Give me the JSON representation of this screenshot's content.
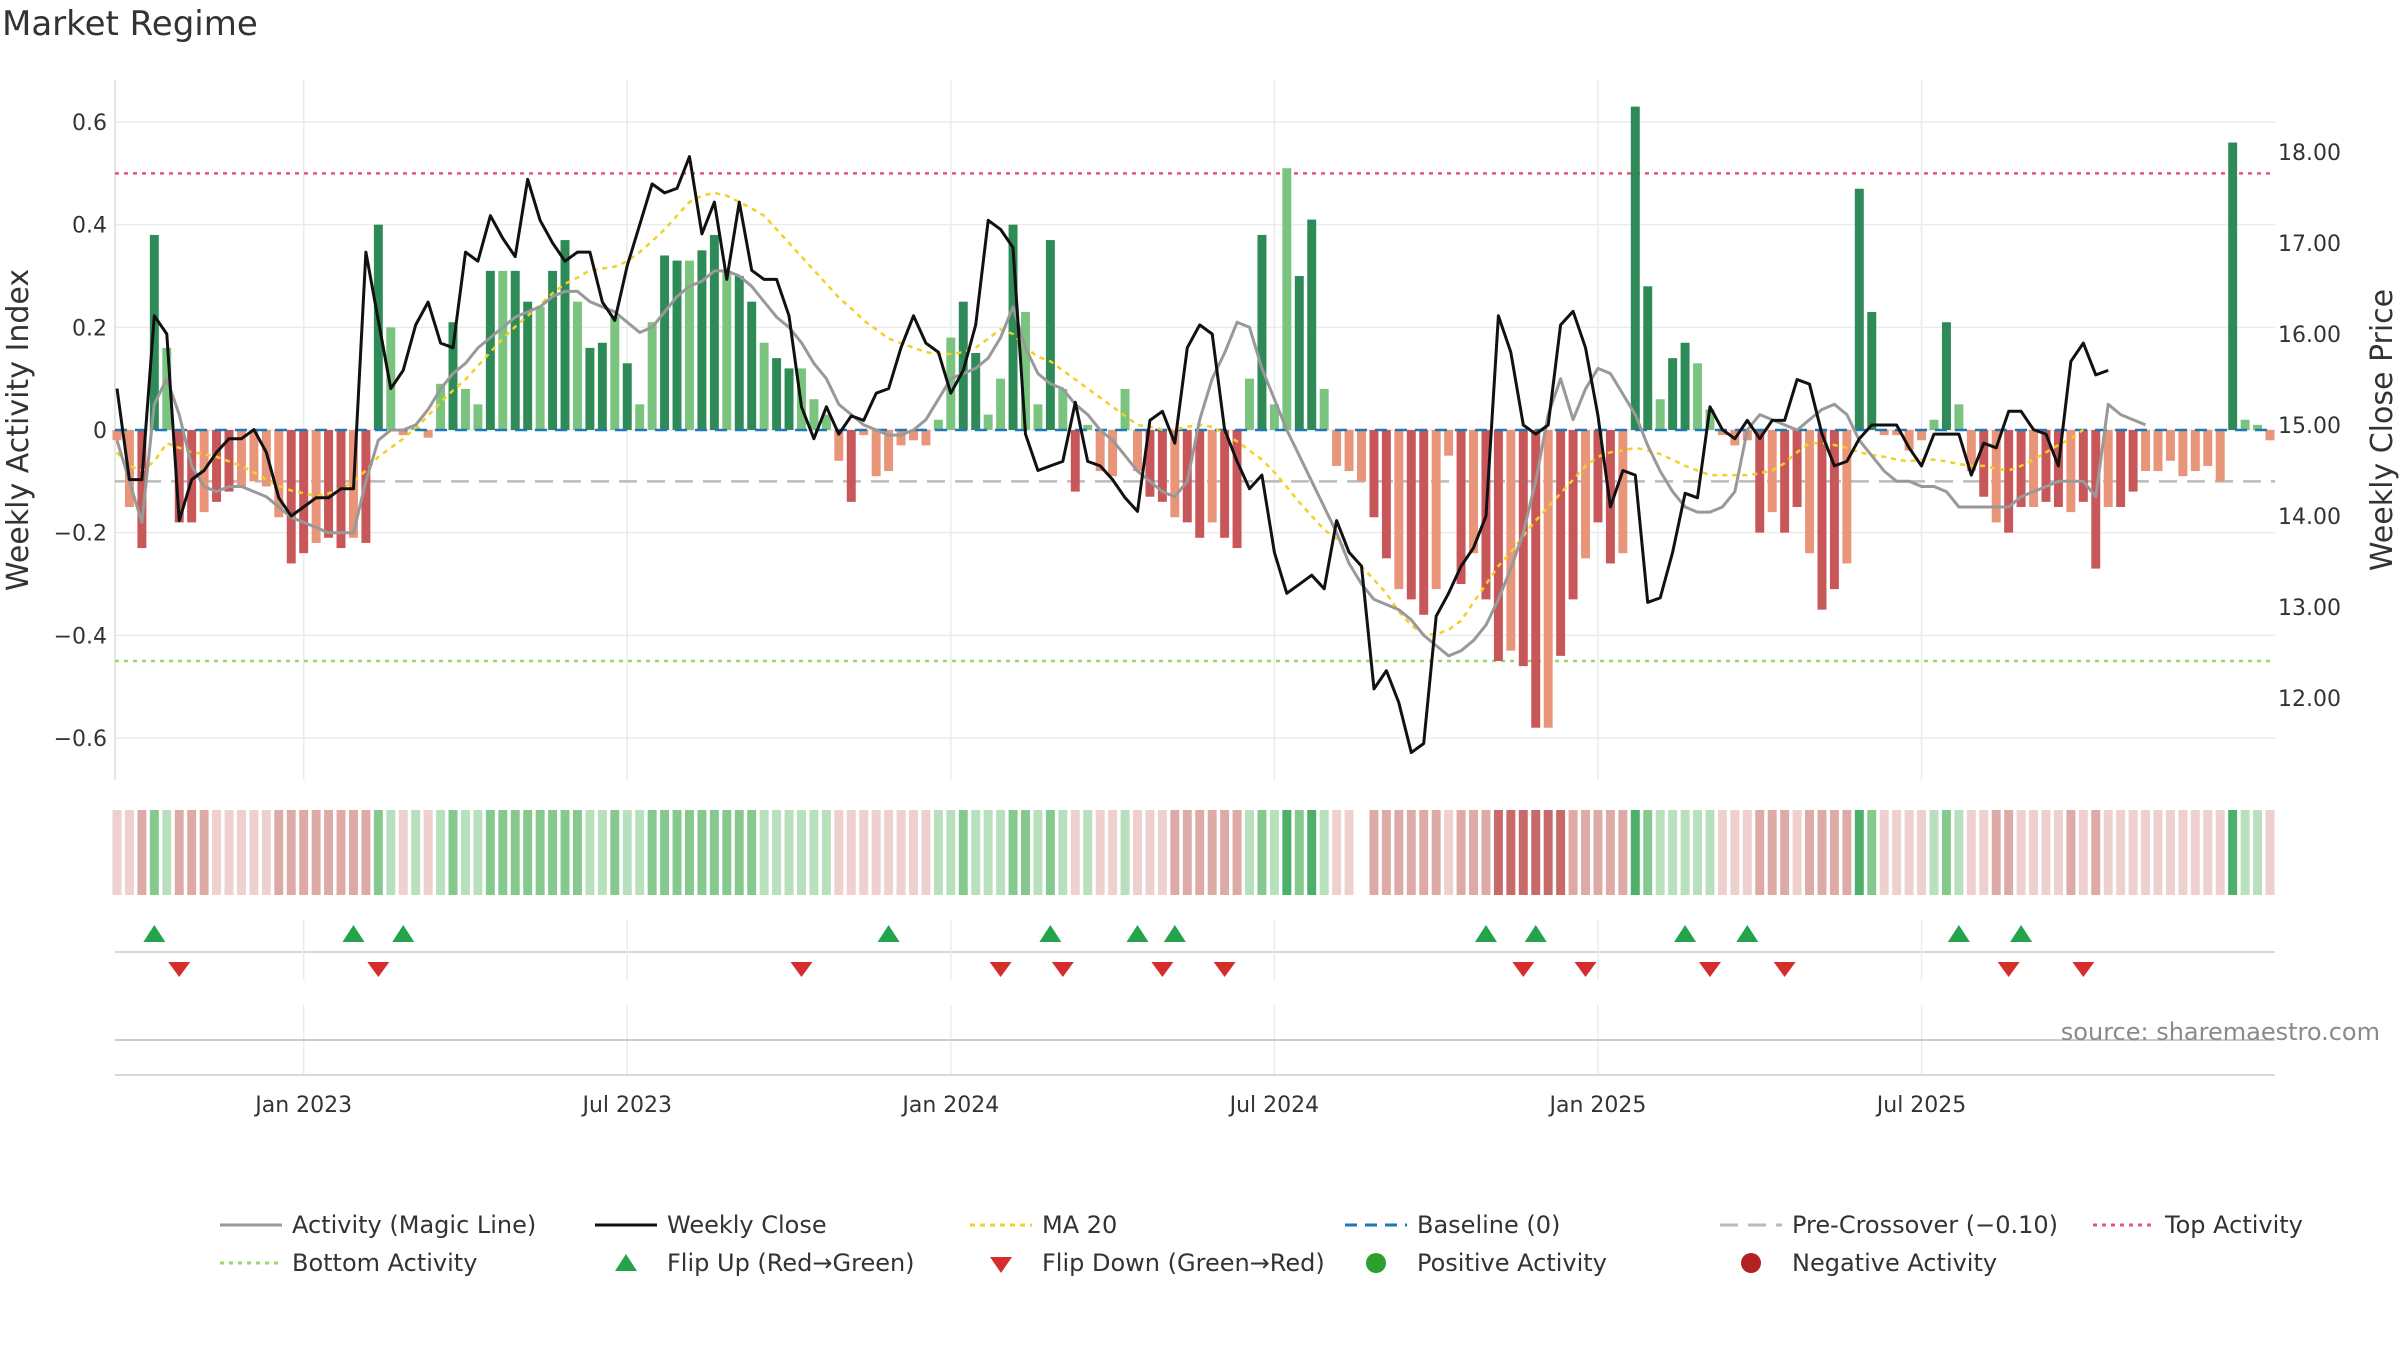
{
  "chart_data": {
    "type": "bar",
    "title": "Market Regime",
    "ylabel_left": "Weekly Activity Index",
    "ylabel_right": "Weekly Close Price",
    "source": "source: sharemaestro.com",
    "ylim_left": [
      -0.69,
      0.69
    ],
    "ylim_right": [
      11.2,
      18.82
    ],
    "left_ticks": [
      {
        "v": 0.6,
        "label": "0.6"
      },
      {
        "v": 0.4,
        "label": "0.4"
      },
      {
        "v": 0.2,
        "label": "0.2"
      },
      {
        "v": 0,
        "label": "0"
      },
      {
        "v": -0.2,
        "label": "−0.2"
      },
      {
        "v": -0.4,
        "label": "−0.4"
      },
      {
        "v": -0.6,
        "label": "−0.6"
      }
    ],
    "right_ticks": [
      {
        "v": 18,
        "label": "18.00"
      },
      {
        "v": 17,
        "label": "17.00"
      },
      {
        "v": 16,
        "label": "16.00"
      },
      {
        "v": 15,
        "label": "15.00"
      },
      {
        "v": 14,
        "label": "14.00"
      },
      {
        "v": 13,
        "label": "13.00"
      },
      {
        "v": 12,
        "label": "12.00"
      }
    ],
    "x_ticks": [
      {
        "week": 15,
        "label": "Jan 2023"
      },
      {
        "week": 41,
        "label": "Jul 2023"
      },
      {
        "week": 67,
        "label": "Jan 2024"
      },
      {
        "week": 93,
        "label": "Jul 2024"
      },
      {
        "week": 119,
        "label": "Jan 2025"
      },
      {
        "week": 145,
        "label": "Jul 2025"
      }
    ],
    "reference_lines": {
      "top_activity": 0.5,
      "bottom_activity": -0.45,
      "baseline": 0,
      "pre_crossover": -0.1
    },
    "activity": [
      -0.02,
      -0.15,
      -0.23,
      0.38,
      0.16,
      -0.18,
      -0.18,
      -0.16,
      -0.14,
      -0.12,
      -0.11,
      -0.1,
      -0.11,
      -0.17,
      -0.26,
      -0.24,
      -0.22,
      -0.21,
      -0.23,
      -0.21,
      -0.22,
      0.4,
      0.2,
      -0.01,
      0.005,
      -0.015,
      0.09,
      0.21,
      0.08,
      0.05,
      0.31,
      0.31,
      0.31,
      0.25,
      0.24,
      0.31,
      0.37,
      0.25,
      0.16,
      0.17,
      0.22,
      0.13,
      0.05,
      0.21,
      0.34,
      0.33,
      0.33,
      0.35,
      0.38,
      0.31,
      0.3,
      0.25,
      0.17,
      0.14,
      0.12,
      0.12,
      0.06,
      0.03,
      -0.06,
      -0.14,
      -0.01,
      -0.09,
      -0.08,
      -0.03,
      -0.02,
      -0.03,
      0.02,
      0.18,
      0.25,
      0.15,
      0.03,
      0.1,
      0.4,
      0.23,
      0.05,
      0.37,
      0.08,
      -0.12,
      0.01,
      -0.08,
      -0.09,
      0.08,
      -0.08,
      -0.13,
      -0.14,
      -0.17,
      -0.18,
      -0.21,
      -0.18,
      -0.21,
      -0.23,
      0.1,
      0.38,
      0.05,
      0.51,
      0.3,
      0.41,
      0.08,
      -0.07,
      -0.08,
      -0.1,
      -0.17,
      -0.25,
      -0.31,
      -0.33,
      -0.36,
      -0.31,
      -0.05,
      -0.3,
      -0.24,
      -0.33,
      -0.45,
      -0.43,
      -0.46,
      -0.58,
      -0.58,
      -0.44,
      -0.33,
      -0.25,
      -0.18,
      -0.26,
      -0.24,
      0.63,
      0.28,
      0.06,
      0.14,
      0.17,
      0.13,
      0.04,
      -0.01,
      -0.03,
      -0.02,
      -0.2,
      -0.16,
      -0.2,
      -0.15,
      -0.24,
      -0.35,
      -0.31,
      -0.26,
      0.47,
      0.23,
      -0.01,
      -0.01,
      -0.04,
      -0.02,
      0.02,
      0.21,
      0.05,
      -0.08,
      -0.13,
      -0.18,
      -0.2,
      -0.15,
      -0.15,
      -0.14,
      -0.15,
      -0.16,
      -0.14,
      -0.27,
      -0.15,
      -0.15,
      -0.12,
      -0.08,
      -0.08,
      -0.06,
      -0.09,
      -0.08,
      -0.07,
      -0.1,
      0.56,
      0.02,
      0.01,
      -0.02
    ],
    "close": [
      15.4,
      14.4,
      14.4,
      16.2,
      16.0,
      13.95,
      14.4,
      14.5,
      14.7,
      14.85,
      14.85,
      14.95,
      14.7,
      14.2,
      14.0,
      14.1,
      14.2,
      14.2,
      14.3,
      14.3,
      16.9,
      16.15,
      15.4,
      15.6,
      16.1,
      16.35,
      15.9,
      15.85,
      16.9,
      16.8,
      17.3,
      17.05,
      16.85,
      17.7,
      17.25,
      17.0,
      16.8,
      16.9,
      16.9,
      16.35,
      16.15,
      16.75,
      17.2,
      17.65,
      17.55,
      17.6,
      17.95,
      17.1,
      17.45,
      16.6,
      17.45,
      16.7,
      16.6,
      16.6,
      16.2,
      15.2,
      14.85,
      15.2,
      14.9,
      15.1,
      15.05,
      15.35,
      15.4,
      15.85,
      16.2,
      15.9,
      15.8,
      15.35,
      15.6,
      16.1,
      17.25,
      17.15,
      16.95,
      14.9,
      14.5,
      14.55,
      14.6,
      15.25,
      14.6,
      14.55,
      14.4,
      14.2,
      14.05,
      15.05,
      15.15,
      14.8,
      15.85,
      16.1,
      16.0,
      14.95,
      14.6,
      14.3,
      14.45,
      13.6,
      13.15,
      13.25,
      13.35,
      13.2,
      13.95,
      13.6,
      13.45,
      12.1,
      12.3,
      11.95,
      11.4,
      11.5,
      12.9,
      13.15,
      13.45,
      13.65,
      14.0,
      16.2,
      15.8,
      15.0,
      14.9,
      15.0,
      16.1,
      16.25,
      15.85,
      15.1,
      14.1,
      14.5,
      14.45,
      13.05,
      13.1,
      13.6,
      14.25,
      14.2,
      15.2,
      14.95,
      14.85,
      15.05,
      14.85,
      15.05,
      15.05,
      15.5,
      15.45,
      14.9,
      14.55,
      14.6,
      14.85,
      15.0,
      15.0,
      15.0,
      14.75,
      14.55,
      14.9,
      14.9,
      14.9,
      14.45,
      14.8,
      14.75,
      15.15,
      15.15,
      14.95,
      14.9,
      14.55,
      15.7,
      15.9,
      15.55,
      15.6
    ],
    "magic_line": [
      -0.02,
      -0.1,
      -0.18,
      0.05,
      0.1,
      0.03,
      -0.07,
      -0.11,
      -0.12,
      -0.11,
      -0.11,
      -0.12,
      -0.13,
      -0.15,
      -0.17,
      -0.18,
      -0.19,
      -0.2,
      -0.2,
      -0.2,
      -0.1,
      -0.02,
      0.0,
      0.0,
      0.01,
      0.04,
      0.08,
      0.11,
      0.13,
      0.16,
      0.18,
      0.2,
      0.22,
      0.23,
      0.24,
      0.26,
      0.27,
      0.27,
      0.25,
      0.24,
      0.23,
      0.21,
      0.19,
      0.2,
      0.23,
      0.26,
      0.28,
      0.29,
      0.31,
      0.31,
      0.3,
      0.28,
      0.25,
      0.22,
      0.2,
      0.17,
      0.13,
      0.1,
      0.05,
      0.03,
      0.01,
      0.0,
      -0.01,
      -0.01,
      0.0,
      0.02,
      0.06,
      0.1,
      0.11,
      0.12,
      0.14,
      0.18,
      0.24,
      0.16,
      0.11,
      0.09,
      0.08,
      0.05,
      0.03,
      0.0,
      -0.02,
      -0.05,
      -0.08,
      -0.1,
      -0.12,
      -0.13,
      -0.1,
      0.02,
      0.1,
      0.15,
      0.21,
      0.2,
      0.12,
      0.06,
      0.0,
      -0.05,
      -0.1,
      -0.15,
      -0.2,
      -0.26,
      -0.3,
      -0.33,
      -0.34,
      -0.35,
      -0.37,
      -0.4,
      -0.42,
      -0.44,
      -0.43,
      -0.41,
      -0.38,
      -0.33,
      -0.27,
      -0.2,
      -0.1,
      0.03,
      0.1,
      0.02,
      0.08,
      0.12,
      0.11,
      0.07,
      0.03,
      -0.03,
      -0.08,
      -0.12,
      -0.15,
      -0.16,
      -0.16,
      -0.15,
      -0.12,
      0.0,
      0.03,
      0.02,
      0.01,
      0.0,
      0.02,
      0.04,
      0.05,
      0.03,
      -0.02,
      -0.05,
      -0.08,
      -0.1,
      -0.1,
      -0.11,
      -0.11,
      -0.12,
      -0.15,
      -0.15,
      -0.15,
      -0.15,
      -0.15,
      -0.13,
      -0.12,
      -0.11,
      -0.1,
      -0.1,
      -0.1,
      -0.13,
      0.05,
      0.03,
      0.02,
      0.01
    ],
    "ma20": [
      14.7,
      14.55,
      14.5,
      14.6,
      14.8,
      14.75,
      14.7,
      14.68,
      14.65,
      14.6,
      14.55,
      14.48,
      14.4,
      14.33,
      14.28,
      14.25,
      14.22,
      14.25,
      14.3,
      14.38,
      14.5,
      14.65,
      14.75,
      14.85,
      14.97,
      15.1,
      15.25,
      15.38,
      15.5,
      15.65,
      15.8,
      15.95,
      16.08,
      16.2,
      16.32,
      16.45,
      16.55,
      16.62,
      16.7,
      16.72,
      16.74,
      16.8,
      16.9,
      17.02,
      17.15,
      17.3,
      17.45,
      17.52,
      17.55,
      17.52,
      17.45,
      17.38,
      17.3,
      17.15,
      17.0,
      16.85,
      16.7,
      16.55,
      16.4,
      16.28,
      16.15,
      16.05,
      15.95,
      15.9,
      15.85,
      15.8,
      15.78,
      15.78,
      15.8,
      15.85,
      15.95,
      16.05,
      16.0,
      15.85,
      15.75,
      15.7,
      15.6,
      15.5,
      15.4,
      15.3,
      15.2,
      15.1,
      15.0,
      14.98,
      14.95,
      14.95,
      14.98,
      15.0,
      14.98,
      14.9,
      14.82,
      14.72,
      14.62,
      14.48,
      14.32,
      14.15,
      14.0,
      13.85,
      13.75,
      13.6,
      13.45,
      13.3,
      13.15,
      12.95,
      12.8,
      12.7,
      12.7,
      12.75,
      12.85,
      13.05,
      13.25,
      13.45,
      13.6,
      13.78,
      13.95,
      14.1,
      14.25,
      14.4,
      14.55,
      14.65,
      14.7,
      14.72,
      14.75,
      14.72,
      14.68,
      14.62,
      14.55,
      14.5,
      14.45,
      14.45,
      14.45,
      14.45,
      14.47,
      14.5,
      14.58,
      14.7,
      14.8,
      14.8,
      14.78,
      14.75,
      14.7,
      14.67,
      14.65,
      14.62,
      14.6,
      14.62,
      14.62,
      14.6,
      14.57,
      14.55,
      14.55,
      14.52,
      14.5,
      14.55,
      14.62,
      14.7,
      14.78,
      14.85,
      14.95
    ],
    "flip_up_weeks": [
      3,
      19,
      23,
      62,
      75,
      82,
      85,
      110,
      114,
      126,
      131,
      148,
      153
    ],
    "flip_down_weeks": [
      5,
      21,
      55,
      71,
      76,
      84,
      89,
      113,
      118,
      128,
      134,
      152,
      158
    ],
    "legend": [
      "Activity (Magic Line)",
      "Weekly Close",
      "MA 20",
      "Baseline (0)",
      "Pre-Crossover (−0.10)",
      "Top Activity",
      "Bottom Activity",
      "Flip Up (Red→Green)",
      "Flip Down (Green→Red)",
      "Positive Activity",
      "Negative Activity"
    ],
    "colors": {
      "pos_dark": "#2e8b57",
      "pos_light": "#7bc47f",
      "neg_dark": "#c8575a",
      "neg_light": "#e8957a",
      "close": "#111111",
      "magic": "#999999",
      "ma20": "#f2d024",
      "baseline": "#1f77b4",
      "pre": "#bbbbbb",
      "top": "#e8557a",
      "bottom": "#9bd66b",
      "flip_up": "#23a34b",
      "flip_down": "#d62c2c",
      "pos_dot": "#2ca02c",
      "neg_dot": "#b22222"
    }
  }
}
